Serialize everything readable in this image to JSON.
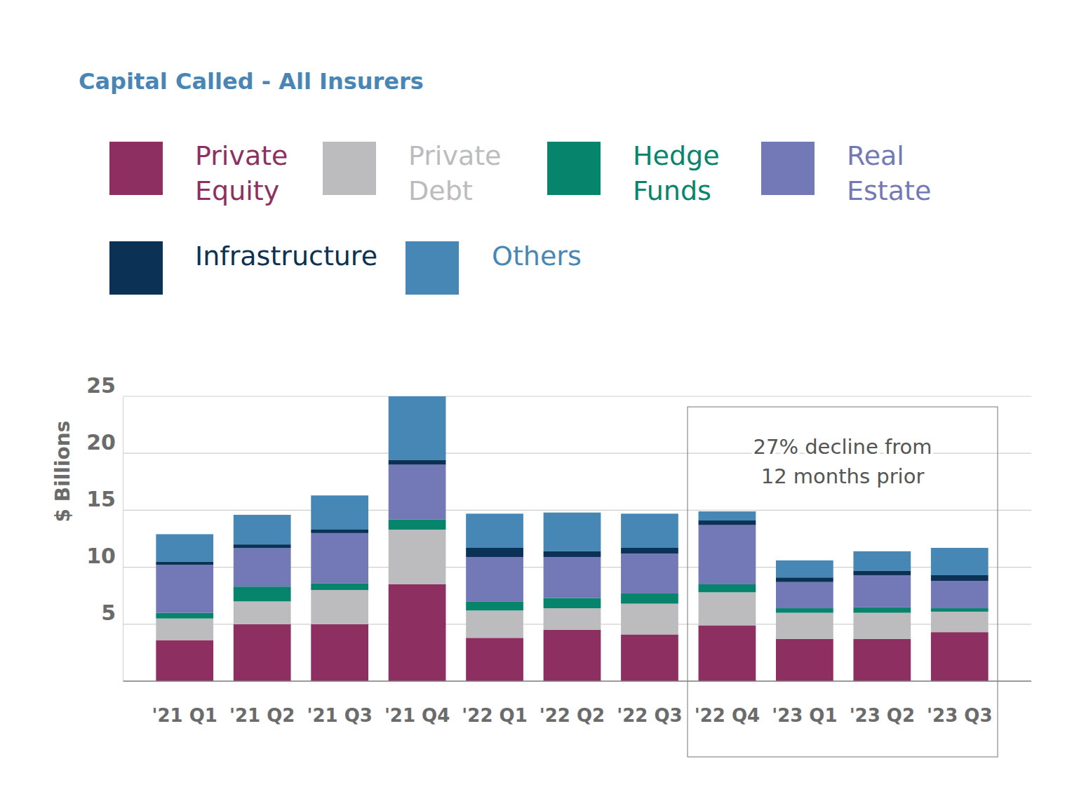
{
  "chart_data": {
    "type": "bar",
    "title": "Capital Called - All Insurers",
    "y_label": "$ Billions",
    "stacked": true,
    "grid": true,
    "categories": [
      "'21 Q1",
      "'21 Q2",
      "'21 Q3",
      "'21 Q4",
      "'22 Q1",
      "'22 Q2",
      "'22 Q3",
      "'22 Q4",
      "'23 Q1",
      "'23 Q2",
      "'23 Q3"
    ],
    "series": [
      {
        "name": "Private Equity",
        "color": "#8e2f62",
        "values": [
          3.6,
          5.0,
          5.0,
          8.5,
          3.8,
          4.5,
          4.1,
          4.9,
          3.7,
          3.7,
          4.3
        ]
      },
      {
        "name": "Private Debt",
        "color": "#bcbcbe",
        "values": [
          1.9,
          2.0,
          3.0,
          4.8,
          2.4,
          1.9,
          2.7,
          2.9,
          2.3,
          2.3,
          1.8
        ]
      },
      {
        "name": "Hedge Funds",
        "color": "#06856c",
        "values": [
          0.5,
          1.3,
          0.6,
          0.9,
          0.8,
          0.9,
          0.9,
          0.7,
          0.4,
          0.5,
          0.3
        ]
      },
      {
        "name": "Real Estate",
        "color": "#7378b6",
        "values": [
          4.2,
          3.4,
          4.4,
          4.8,
          3.9,
          3.6,
          3.5,
          5.2,
          2.3,
          2.8,
          2.4
        ]
      },
      {
        "name": "Infrastructure",
        "color": "#0b3154",
        "values": [
          0.3,
          0.3,
          0.3,
          0.4,
          0.8,
          0.5,
          0.5,
          0.4,
          0.4,
          0.4,
          0.5
        ]
      },
      {
        "name": "Others",
        "color": "#4787b6",
        "values": [
          2.4,
          2.6,
          3.0,
          5.6,
          3.0,
          3.4,
          3.0,
          0.8,
          1.5,
          1.7,
          2.4
        ]
      }
    ],
    "ylim": [
      0,
      25
    ],
    "yticks": [
      5,
      10,
      15,
      20,
      25
    ],
    "annotations": [
      {
        "lines": [
          "27% decline from",
          "12 months prior"
        ]
      }
    ]
  }
}
